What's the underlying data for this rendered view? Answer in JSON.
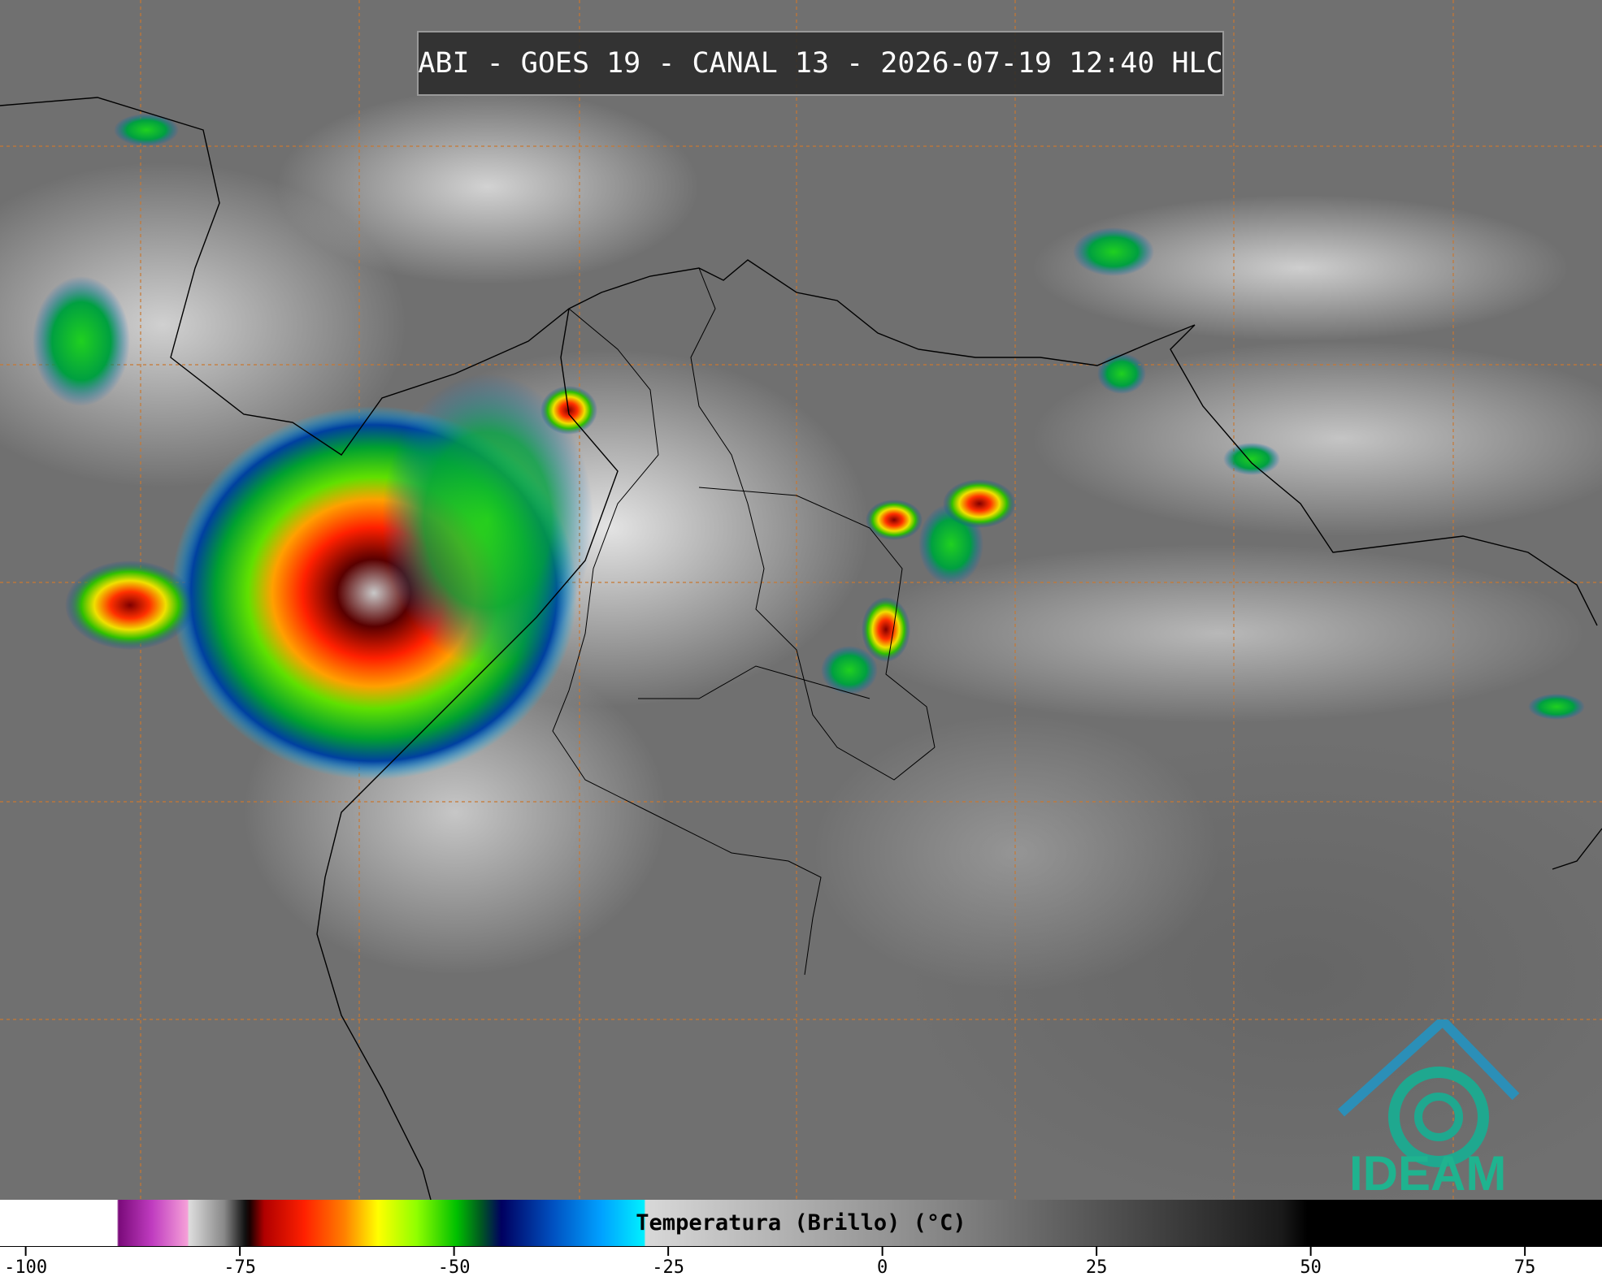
{
  "header": {
    "title": "ABI - GOES 19 - CANAL 13 - 2026-07-19 12:40 HLC"
  },
  "logo": {
    "text": "IDEAM"
  },
  "chart_data": {
    "type": "colorbar",
    "xlabel": "Temperatura (Brillo) (°C)",
    "xlim": [
      -103,
      84
    ],
    "xticks": [
      -100,
      -75,
      -50,
      -25,
      0,
      25,
      50,
      75
    ]
  }
}
